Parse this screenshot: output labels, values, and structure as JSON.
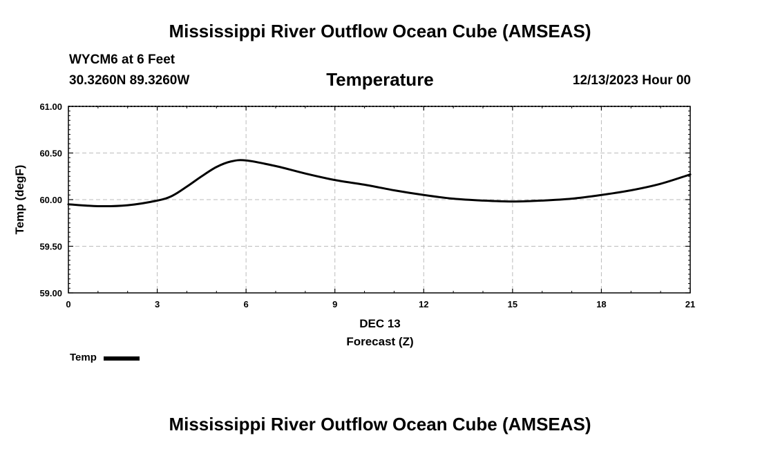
{
  "header": {
    "title": "Mississippi River Outflow Ocean Cube (AMSEAS)",
    "station": "WYCM6 at 6 Feet",
    "coordinates": "30.3260N  89.3260W",
    "variable": "Temperature",
    "datetime": "12/13/2023 Hour 00"
  },
  "footer": {
    "title": "Mississippi River Outflow Ocean Cube (AMSEAS)"
  },
  "legend": {
    "label": "Temp"
  },
  "chart_data": {
    "type": "line",
    "title": "Temperature",
    "xlabel": "Forecast (Z)",
    "xlabel_date": "DEC 13",
    "ylabel": "Temp (degF)",
    "xlim": [
      0,
      21
    ],
    "ylim": [
      59.0,
      61.0
    ],
    "x_ticks": [
      0,
      3,
      6,
      9,
      12,
      15,
      18,
      21
    ],
    "y_ticks": [
      "59.00",
      "59.50",
      "60.00",
      "60.50",
      "61.00"
    ],
    "grid": true,
    "series": [
      {
        "name": "Temp",
        "color": "#000000",
        "x": [
          0,
          1,
          2,
          3,
          3.5,
          4,
          4.5,
          5,
          5.5,
          6,
          7,
          8,
          9,
          10,
          11,
          12,
          13,
          14,
          15,
          16,
          17,
          18,
          19,
          20,
          21
        ],
        "values": [
          59.95,
          59.93,
          59.94,
          59.99,
          60.04,
          60.14,
          60.25,
          60.35,
          60.41,
          60.42,
          60.36,
          60.28,
          60.21,
          60.16,
          60.1,
          60.05,
          60.01,
          59.99,
          59.98,
          59.99,
          60.01,
          60.05,
          60.1,
          60.17,
          60.27
        ]
      }
    ]
  }
}
